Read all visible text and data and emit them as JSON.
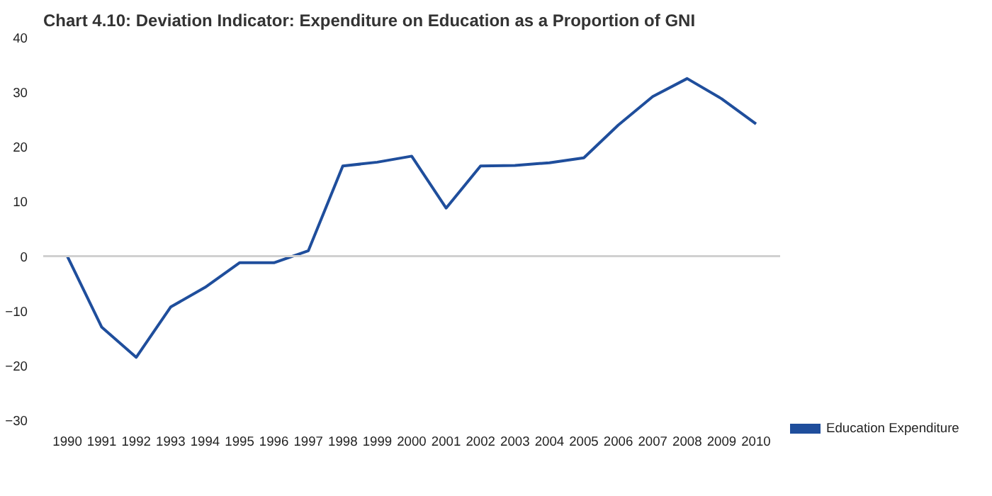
{
  "chart_data": {
    "type": "line",
    "title": "Chart 4.10: Deviation Indicator: Expenditure on Education as a Proportion of GNI",
    "categories": [
      "1990",
      "1991",
      "1992",
      "1993",
      "1994",
      "1995",
      "1996",
      "1997",
      "1998",
      "1999",
      "2000",
      "2001",
      "2002",
      "2003",
      "2004",
      "2005",
      "2006",
      "2007",
      "2008",
      "2009",
      "2010"
    ],
    "series": [
      {
        "name": "Education Expenditure",
        "color": "#1f4e9c",
        "values": [
          0,
          -13,
          -18.5,
          -9.3,
          -5.7,
          -1.2,
          -1.2,
          1,
          16.5,
          17.2,
          18.3,
          8.8,
          16.5,
          16.6,
          17.1,
          18,
          24,
          29.2,
          32.5,
          28.8,
          24.2
        ]
      }
    ],
    "ylim": [
      -30,
      40
    ],
    "yticks": [
      -30,
      -20,
      -10,
      0,
      10,
      20,
      30,
      40
    ],
    "ref_lines": [
      {
        "axis": "y",
        "value": 0,
        "color": "#d0d0d0"
      }
    ],
    "grid": false,
    "legend": "right",
    "marker": "none",
    "line_style": "solid"
  }
}
